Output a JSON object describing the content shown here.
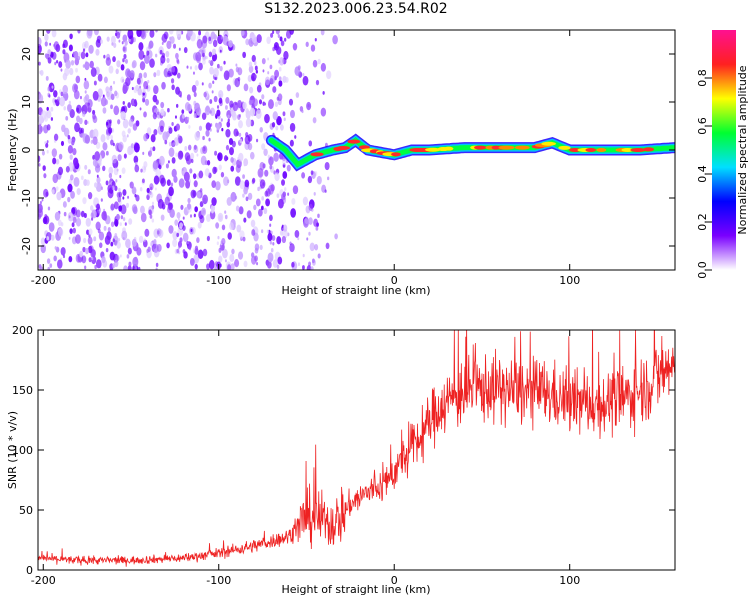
{
  "title": "S132.2023.006.23.54.R02",
  "chart_data": [
    {
      "type": "heatmap",
      "xlabel": "Height of straight line (km)",
      "ylabel": "Frequency (Hz)",
      "xlim": [
        -203,
        160
      ],
      "ylim": [
        -25,
        25
      ],
      "x_ticks": [
        -200,
        -100,
        0,
        100
      ],
      "y_ticks": [
        -20,
        -10,
        0,
        10,
        20
      ],
      "colorbar": {
        "label": "Normalized spectral amplitude",
        "range": [
          0,
          1
        ],
        "ticks": [
          "0.0",
          "0.2",
          "0.4",
          "0.6",
          "0.8"
        ],
        "colors": [
          "#ffffff",
          "#7a00ff",
          "#0000ff",
          "#00e0ff",
          "#00ff30",
          "#ffff00",
          "#ff2020",
          "#ff1090"
        ]
      },
      "signal_trace": {
        "x": [
          -70,
          -62,
          -55,
          -45,
          -35,
          -28,
          -22,
          -15,
          0,
          10,
          20,
          40,
          60,
          80,
          90,
          100,
          120,
          140,
          160
        ],
        "frequency": [
          2,
          0,
          -3,
          -1,
          0,
          0.5,
          2,
          0,
          -1,
          0,
          0,
          0.5,
          0.5,
          0.5,
          1.5,
          0,
          0,
          0,
          0.5
        ]
      }
    },
    {
      "type": "line",
      "xlabel": "Height of straight line (km)",
      "ylabel": "SNR (10 * v/v)",
      "xlim": [
        -203,
        160
      ],
      "ylim": [
        0,
        200
      ],
      "x_ticks": [
        -200,
        -100,
        0,
        100
      ],
      "y_ticks": [
        0,
        50,
        100,
        150,
        200
      ],
      "series_color": "#ee2222",
      "trend": {
        "x": [
          -203,
          -180,
          -150,
          -120,
          -100,
          -80,
          -60,
          -52,
          -45,
          -35,
          -25,
          -15,
          -5,
          5,
          15,
          25,
          35,
          45,
          55,
          65,
          75,
          85,
          100,
          115,
          130,
          145,
          160
        ],
        "snr": [
          10,
          8,
          8,
          10,
          14,
          20,
          28,
          42,
          45,
          38,
          55,
          65,
          72,
          92,
          110,
          135,
          145,
          150,
          152,
          150,
          148,
          148,
          140,
          138,
          142,
          155,
          172
        ]
      }
    }
  ]
}
